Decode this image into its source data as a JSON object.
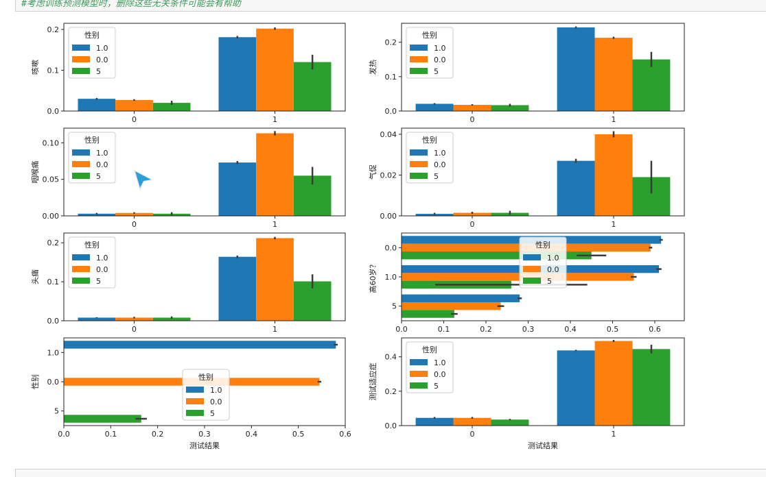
{
  "notebook": {
    "comment": "#考虑训练预测模型时，删除这些无关条件可能会有帮助"
  },
  "colors": {
    "c0": "#1f77b4",
    "c1": "#ff7f0e",
    "c2": "#2ca02c",
    "err": "#3b3b3b"
  },
  "chart_data": [
    {
      "id": "cough",
      "type": "bar",
      "orientation": "vertical",
      "ylabel": "咳嗽",
      "xlabel": "",
      "categories": [
        "0",
        "1"
      ],
      "yticks": [
        "0.0",
        "0.1",
        "0.2"
      ],
      "ylim": [
        0,
        0.215
      ],
      "legend": {
        "title": "性别",
        "labels": [
          "1.0",
          "0.0",
          "5"
        ],
        "placement": "upper-left"
      },
      "series": [
        {
          "name": "1.0",
          "values": [
            0.03,
            0.181
          ],
          "err": [
            0.002,
            0.003
          ]
        },
        {
          "name": "0.0",
          "values": [
            0.027,
            0.202
          ],
          "err": [
            0.002,
            0.003
          ]
        },
        {
          "name": "5",
          "values": [
            0.02,
            0.12
          ],
          "err": [
            0.005,
            0.018
          ]
        }
      ]
    },
    {
      "id": "fever",
      "type": "bar",
      "orientation": "vertical",
      "ylabel": "发热",
      "xlabel": "",
      "categories": [
        "0",
        "1"
      ],
      "yticks": [
        "0.0",
        "0.1",
        "0.2"
      ],
      "ylim": [
        0,
        0.255
      ],
      "legend": {
        "title": "性别",
        "labels": [
          "1.0",
          "0.0",
          "5"
        ],
        "placement": "upper-left"
      },
      "series": [
        {
          "name": "1.0",
          "values": [
            0.021,
            0.243
          ],
          "err": [
            0.002,
            0.003
          ]
        },
        {
          "name": "0.0",
          "values": [
            0.018,
            0.213
          ],
          "err": [
            0.002,
            0.003
          ]
        },
        {
          "name": "5",
          "values": [
            0.017,
            0.15
          ],
          "err": [
            0.004,
            0.022
          ]
        }
      ]
    },
    {
      "id": "sore_throat",
      "type": "bar",
      "orientation": "vertical",
      "ylabel": "咽喉痛",
      "xlabel": "",
      "categories": [
        "0",
        "1"
      ],
      "yticks": [
        "0.00",
        "0.05",
        "0.10"
      ],
      "ylim": [
        0,
        0.12
      ],
      "legend": {
        "title": "性别",
        "labels": [
          "1.0",
          "0.0",
          "5"
        ],
        "placement": "upper-left"
      },
      "series": [
        {
          "name": "1.0",
          "values": [
            0.003,
            0.073
          ],
          "err": [
            0.001,
            0.002
          ]
        },
        {
          "name": "0.0",
          "values": [
            0.004,
            0.113
          ],
          "err": [
            0.001,
            0.003
          ]
        },
        {
          "name": "5",
          "values": [
            0.003,
            0.055
          ],
          "err": [
            0.002,
            0.012
          ]
        }
      ]
    },
    {
      "id": "shortness_of_breath",
      "type": "bar",
      "orientation": "vertical",
      "ylabel": "气促",
      "xlabel": "",
      "categories": [
        "0",
        "1"
      ],
      "yticks": [
        "0.00",
        "0.02",
        "0.04"
      ],
      "ylim": [
        0,
        0.043
      ],
      "legend": {
        "title": "性别",
        "labels": [
          "1.0",
          "0.0",
          "5"
        ],
        "placement": "upper-left"
      },
      "series": [
        {
          "name": "1.0",
          "values": [
            0.001,
            0.027
          ],
          "err": [
            0.0005,
            0.001
          ]
        },
        {
          "name": "0.0",
          "values": [
            0.0015,
            0.04
          ],
          "err": [
            0.0005,
            0.0015
          ]
        },
        {
          "name": "5",
          "values": [
            0.0015,
            0.019
          ],
          "err": [
            0.001,
            0.008
          ]
        }
      ]
    },
    {
      "id": "headache",
      "type": "bar",
      "orientation": "vertical",
      "ylabel": "头痛",
      "xlabel": "",
      "categories": [
        "0",
        "1"
      ],
      "yticks": [
        "0.0",
        "0.1",
        "0.2"
      ],
      "ylim": [
        0,
        0.225
      ],
      "legend": {
        "title": "性别",
        "labels": [
          "1.0",
          "0.0",
          "5"
        ],
        "placement": "upper-left"
      },
      "series": [
        {
          "name": "1.0",
          "values": [
            0.008,
            0.164
          ],
          "err": [
            0.001,
            0.003
          ]
        },
        {
          "name": "0.0",
          "values": [
            0.008,
            0.212
          ],
          "err": [
            0.002,
            0.003
          ]
        },
        {
          "name": "5",
          "values": [
            0.008,
            0.101
          ],
          "err": [
            0.003,
            0.018
          ]
        }
      ]
    },
    {
      "id": "age_60",
      "type": "bar",
      "orientation": "horizontal",
      "ylabel": "高60岁？",
      "xlabel": "",
      "categories": [
        "0.0",
        "1.0",
        "5"
      ],
      "xticks": [
        "0.0",
        "0.1",
        "0.2",
        "0.3",
        "0.4",
        "0.5",
        "0.6"
      ],
      "xlim": [
        0,
        0.67
      ],
      "legend": {
        "title": "性别",
        "labels": [
          "1.0",
          "0.0",
          "5"
        ],
        "placement": "upper-center"
      },
      "series": [
        {
          "name": "1.0",
          "values": [
            0.615,
            0.61,
            0.28
          ],
          "err": [
            0.004,
            0.006,
            0.005
          ]
        },
        {
          "name": "0.0",
          "values": [
            0.59,
            0.55,
            0.235
          ],
          "err": [
            0.004,
            0.007,
            0.008
          ]
        },
        {
          "name": "5",
          "values": [
            0.45,
            0.26,
            0.125
          ],
          "err": [
            0.035,
            0.18,
            0.008
          ]
        }
      ]
    },
    {
      "id": "sex",
      "type": "bar",
      "orientation": "horizontal",
      "ylabel": "性别",
      "xlabel": "测试结果",
      "categories": [
        "1.0",
        "0.0",
        "5"
      ],
      "xticks": [
        "0.0",
        "0.1",
        "0.2",
        "0.3",
        "0.4",
        "0.5",
        "0.6"
      ],
      "xlim": [
        0,
        0.6
      ],
      "legend": {
        "title": "性别",
        "labels": [
          "1.0",
          "0.0",
          "5"
        ],
        "placement": "center"
      },
      "series": [
        {
          "name": "1.0",
          "values": [
            0.58,
            0,
            0
          ],
          "err": [
            0.004,
            0,
            0
          ]
        },
        {
          "name": "0.0",
          "values": [
            0,
            0.545,
            0
          ],
          "err": [
            0,
            0.004,
            0
          ]
        },
        {
          "name": "5",
          "values": [
            0,
            0,
            0.165
          ],
          "err": [
            0,
            0,
            0.012
          ]
        }
      ]
    },
    {
      "id": "test_indication",
      "type": "bar",
      "orientation": "vertical",
      "ylabel": "测试适应症",
      "xlabel": "测试结果",
      "categories": [
        "0",
        "1"
      ],
      "yticks": [
        "0.0",
        "0.2",
        "0.4"
      ],
      "ylim": [
        0,
        0.51
      ],
      "legend": {
        "title": "性别",
        "labels": [
          "1.0",
          "0.0",
          "5"
        ],
        "placement": "upper-left"
      },
      "series": [
        {
          "name": "1.0",
          "values": [
            0.045,
            0.437
          ],
          "err": [
            0.005,
            0.004
          ]
        },
        {
          "name": "0.0",
          "values": [
            0.045,
            0.492
          ],
          "err": [
            0.005,
            0.006
          ]
        },
        {
          "name": "5",
          "values": [
            0.035,
            0.445
          ],
          "err": [
            0.004,
            0.025
          ]
        }
      ]
    }
  ]
}
